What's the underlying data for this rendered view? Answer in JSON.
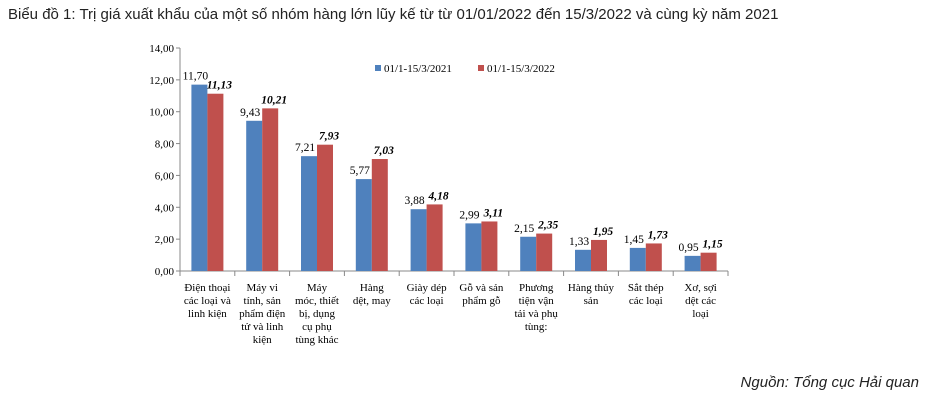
{
  "title": "Biểu đồ 1: Trị giá xuất khẩu của một số nhóm hàng lớn lũy kế từ từ 01/01/2022 đến 15/3/2022 và cùng kỳ năm 2021",
  "source": "Nguồn: Tổng cục Hải quan",
  "chart_data": {
    "type": "bar",
    "categories": [
      [
        "Điện thoại",
        "các loại và",
        "linh kiện"
      ],
      [
        "Máy vi",
        "tính, sản",
        "phẩm điện",
        "tử và linh",
        "kiện"
      ],
      [
        "Máy",
        "móc, thiết",
        "bị, dụng",
        "cụ phụ",
        "tùng khác"
      ],
      [
        "Hàng",
        "dệt, may"
      ],
      [
        "Giày dép",
        "các loại"
      ],
      [
        "Gỗ và sản",
        "phẩm gỗ"
      ],
      [
        "Phương",
        "tiện vận",
        "tải và phụ",
        "tùng:"
      ],
      [
        "Hàng thủy",
        "sản"
      ],
      [
        "Sắt thép",
        "các loại"
      ],
      [
        "Xơ, sợi",
        "dệt các",
        "loại"
      ]
    ],
    "series": [
      {
        "name": "01/1-15/3/2021",
        "color": "#4f81bd",
        "values": [
          11.7,
          9.43,
          7.21,
          5.77,
          3.88,
          2.99,
          2.15,
          1.33,
          1.45,
          0.95
        ],
        "labels": [
          "11,70",
          "9,43",
          "7,21",
          "5,77",
          "3,88",
          "2,99",
          "2,15",
          "1,33",
          "1,45",
          "0,95"
        ]
      },
      {
        "name": "01/1-15/3/2022",
        "color": "#c0504d",
        "values": [
          11.13,
          10.21,
          7.93,
          7.03,
          4.18,
          3.11,
          2.35,
          1.95,
          1.73,
          1.15
        ],
        "labels": [
          "11,13",
          "10,21",
          "7,93",
          "7,03",
          "4,18",
          "3,11",
          "2,35",
          "1,95",
          "1,73",
          "1,15"
        ]
      }
    ],
    "yticks": [
      "0,00",
      "2,00",
      "4,00",
      "6,00",
      "8,00",
      "10,00",
      "12,00",
      "14,00"
    ],
    "ylim": [
      0,
      14
    ],
    "legend_position": "top-right",
    "grid": false
  }
}
